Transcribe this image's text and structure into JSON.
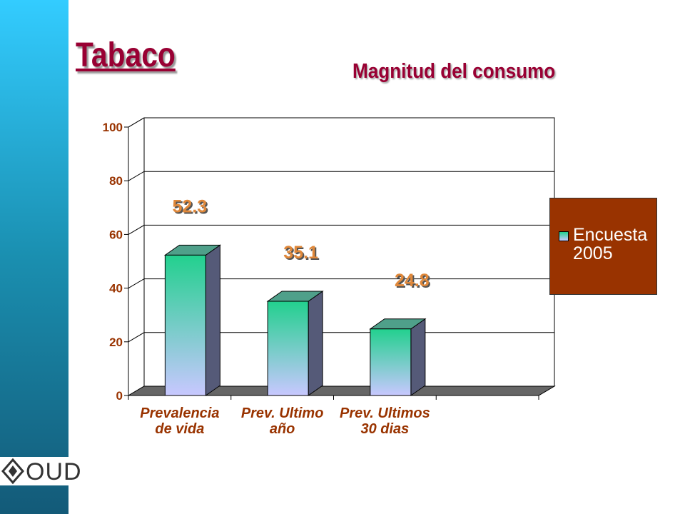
{
  "chart_data": {
    "type": "bar3d",
    "title": "Tabaco",
    "subtitle": "Magnitud del consumo",
    "categories": [
      "Prevalencia\nde vida",
      "Prev. Ultimo\naño",
      "Prev. Ultimos\n30 dias"
    ],
    "series": [
      {
        "name": "Encuesta 2005",
        "values": [
          52.3,
          35.1,
          24.8
        ]
      }
    ],
    "ylim": [
      0,
      100
    ],
    "yticks": [
      0,
      20,
      40,
      60,
      80,
      100
    ],
    "grid": true,
    "legend": "right",
    "logo": "OUD"
  }
}
